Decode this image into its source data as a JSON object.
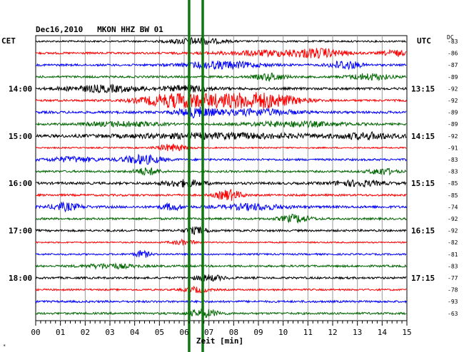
{
  "chart_data": {
    "type": "line",
    "title": "Dec16,2010   MKON HHZ BW 01",
    "left_axis_label": "CET",
    "right_axis_label": "UTC",
    "dc_label": "DC",
    "xlabel": "Zeit [min]",
    "x_ticks": [
      "00",
      "01",
      "02",
      "03",
      "04",
      "05",
      "06",
      "07",
      "08",
      "09",
      "10",
      "11",
      "12",
      "13",
      "14",
      "15"
    ],
    "xlim": [
      0,
      15
    ],
    "grid": true,
    "trace_colors": [
      "#000000",
      "#ff0000",
      "#0000ff",
      "#006600"
    ],
    "event_marker_color": "#117711",
    "event_markers_min": [
      6.2,
      6.75
    ],
    "cet_labels": [
      {
        "row": 4,
        "text": "14:00"
      },
      {
        "row": 8,
        "text": "15:00"
      },
      {
        "row": 12,
        "text": "16:00"
      },
      {
        "row": 16,
        "text": "17:00"
      },
      {
        "row": 20,
        "text": "18:00"
      }
    ],
    "utc_labels": [
      {
        "row": 4,
        "text": "13:15"
      },
      {
        "row": 8,
        "text": "14:15"
      },
      {
        "row": 12,
        "text": "15:15"
      },
      {
        "row": 16,
        "text": "16:15"
      },
      {
        "row": 20,
        "text": "17:15"
      }
    ],
    "dc_values": [
      "-83",
      "-86",
      "-87",
      "-89",
      "-92",
      "-92",
      "-89",
      "-89",
      "-92",
      "-91",
      "-83",
      "-83",
      "-85",
      "-85",
      "-74",
      "-92",
      "-92",
      "-82",
      "-81",
      "-83",
      "-77",
      "-78",
      "-93",
      "-63"
    ],
    "traces": [
      {
        "amp": 0.5,
        "bursts": [
          [
            6.5,
            1.0,
            2.0
          ]
        ]
      },
      {
        "amp": 0.6,
        "bursts": [
          [
            9.5,
            2.0,
            1.5
          ],
          [
            11.5,
            1.0,
            2.0
          ],
          [
            14.5,
            0.5,
            1.5
          ]
        ]
      },
      {
        "amp": 0.6,
        "bursts": [
          [
            7.5,
            1.5,
            2.0
          ],
          [
            12.5,
            0.6,
            2.5
          ]
        ]
      },
      {
        "amp": 0.6,
        "bursts": [
          [
            9.5,
            0.6,
            2.0
          ],
          [
            13.5,
            0.8,
            1.8
          ]
        ]
      },
      {
        "amp": 0.7,
        "bursts": [
          [
            2.8,
            1.5,
            1.8
          ],
          [
            6.2,
            1.0,
            1.6
          ]
        ]
      },
      {
        "amp": 0.6,
        "bursts": [
          [
            5.5,
            1.3,
            3.2
          ],
          [
            8.0,
            2.0,
            3.6
          ],
          [
            9.5,
            1.2,
            2.0
          ]
        ]
      },
      {
        "amp": 0.7,
        "bursts": [
          [
            6.5,
            0.8,
            2.6
          ],
          [
            9.0,
            1.5,
            1.7
          ]
        ]
      },
      {
        "amp": 0.6,
        "bursts": [
          [
            3.5,
            1.5,
            1.3
          ],
          [
            10.5,
            2.0,
            1.4
          ]
        ]
      },
      {
        "amp": 0.8,
        "bursts": [
          [
            7.5,
            4.0,
            1.3
          ],
          [
            13.5,
            1.2,
            1.5
          ]
        ]
      },
      {
        "amp": 0.4,
        "bursts": [
          [
            5.5,
            0.6,
            2.0
          ]
        ]
      },
      {
        "amp": 0.6,
        "bursts": [
          [
            4.3,
            0.8,
            2.5
          ],
          [
            1.5,
            1.0,
            1.4
          ]
        ]
      },
      {
        "amp": 0.6,
        "bursts": [
          [
            4.5,
            0.5,
            2.0
          ],
          [
            14.0,
            0.5,
            1.8
          ]
        ]
      },
      {
        "amp": 0.7,
        "bursts": [
          [
            6.0,
            0.8,
            1.8
          ],
          [
            13.0,
            1.0,
            1.5
          ]
        ]
      },
      {
        "amp": 0.6,
        "bursts": [
          [
            7.8,
            0.5,
            3.0
          ]
        ]
      },
      {
        "amp": 0.7,
        "bursts": [
          [
            1.2,
            0.6,
            2.0
          ],
          [
            5.5,
            0.4,
            1.8
          ],
          [
            8.8,
            1.2,
            1.6
          ]
        ]
      },
      {
        "amp": 0.6,
        "bursts": [
          [
            10.5,
            0.6,
            2.2
          ]
        ]
      },
      {
        "amp": 0.6,
        "bursts": [
          [
            6.5,
            0.5,
            1.8
          ]
        ]
      },
      {
        "amp": 0.4,
        "bursts": [
          [
            6.0,
            0.5,
            1.4
          ]
        ]
      },
      {
        "amp": 0.5,
        "bursts": [
          [
            4.3,
            0.3,
            2.0
          ]
        ]
      },
      {
        "amp": 0.6,
        "bursts": [
          [
            3.0,
            1.0,
            1.3
          ]
        ]
      },
      {
        "amp": 0.6,
        "bursts": [
          [
            7.0,
            0.6,
            1.6
          ]
        ]
      },
      {
        "amp": 0.5,
        "bursts": [
          [
            6.5,
            0.5,
            1.5
          ]
        ]
      },
      {
        "amp": 0.6,
        "bursts": []
      },
      {
        "amp": 0.6,
        "bursts": [
          [
            6.8,
            0.6,
            2.2
          ]
        ]
      }
    ]
  }
}
